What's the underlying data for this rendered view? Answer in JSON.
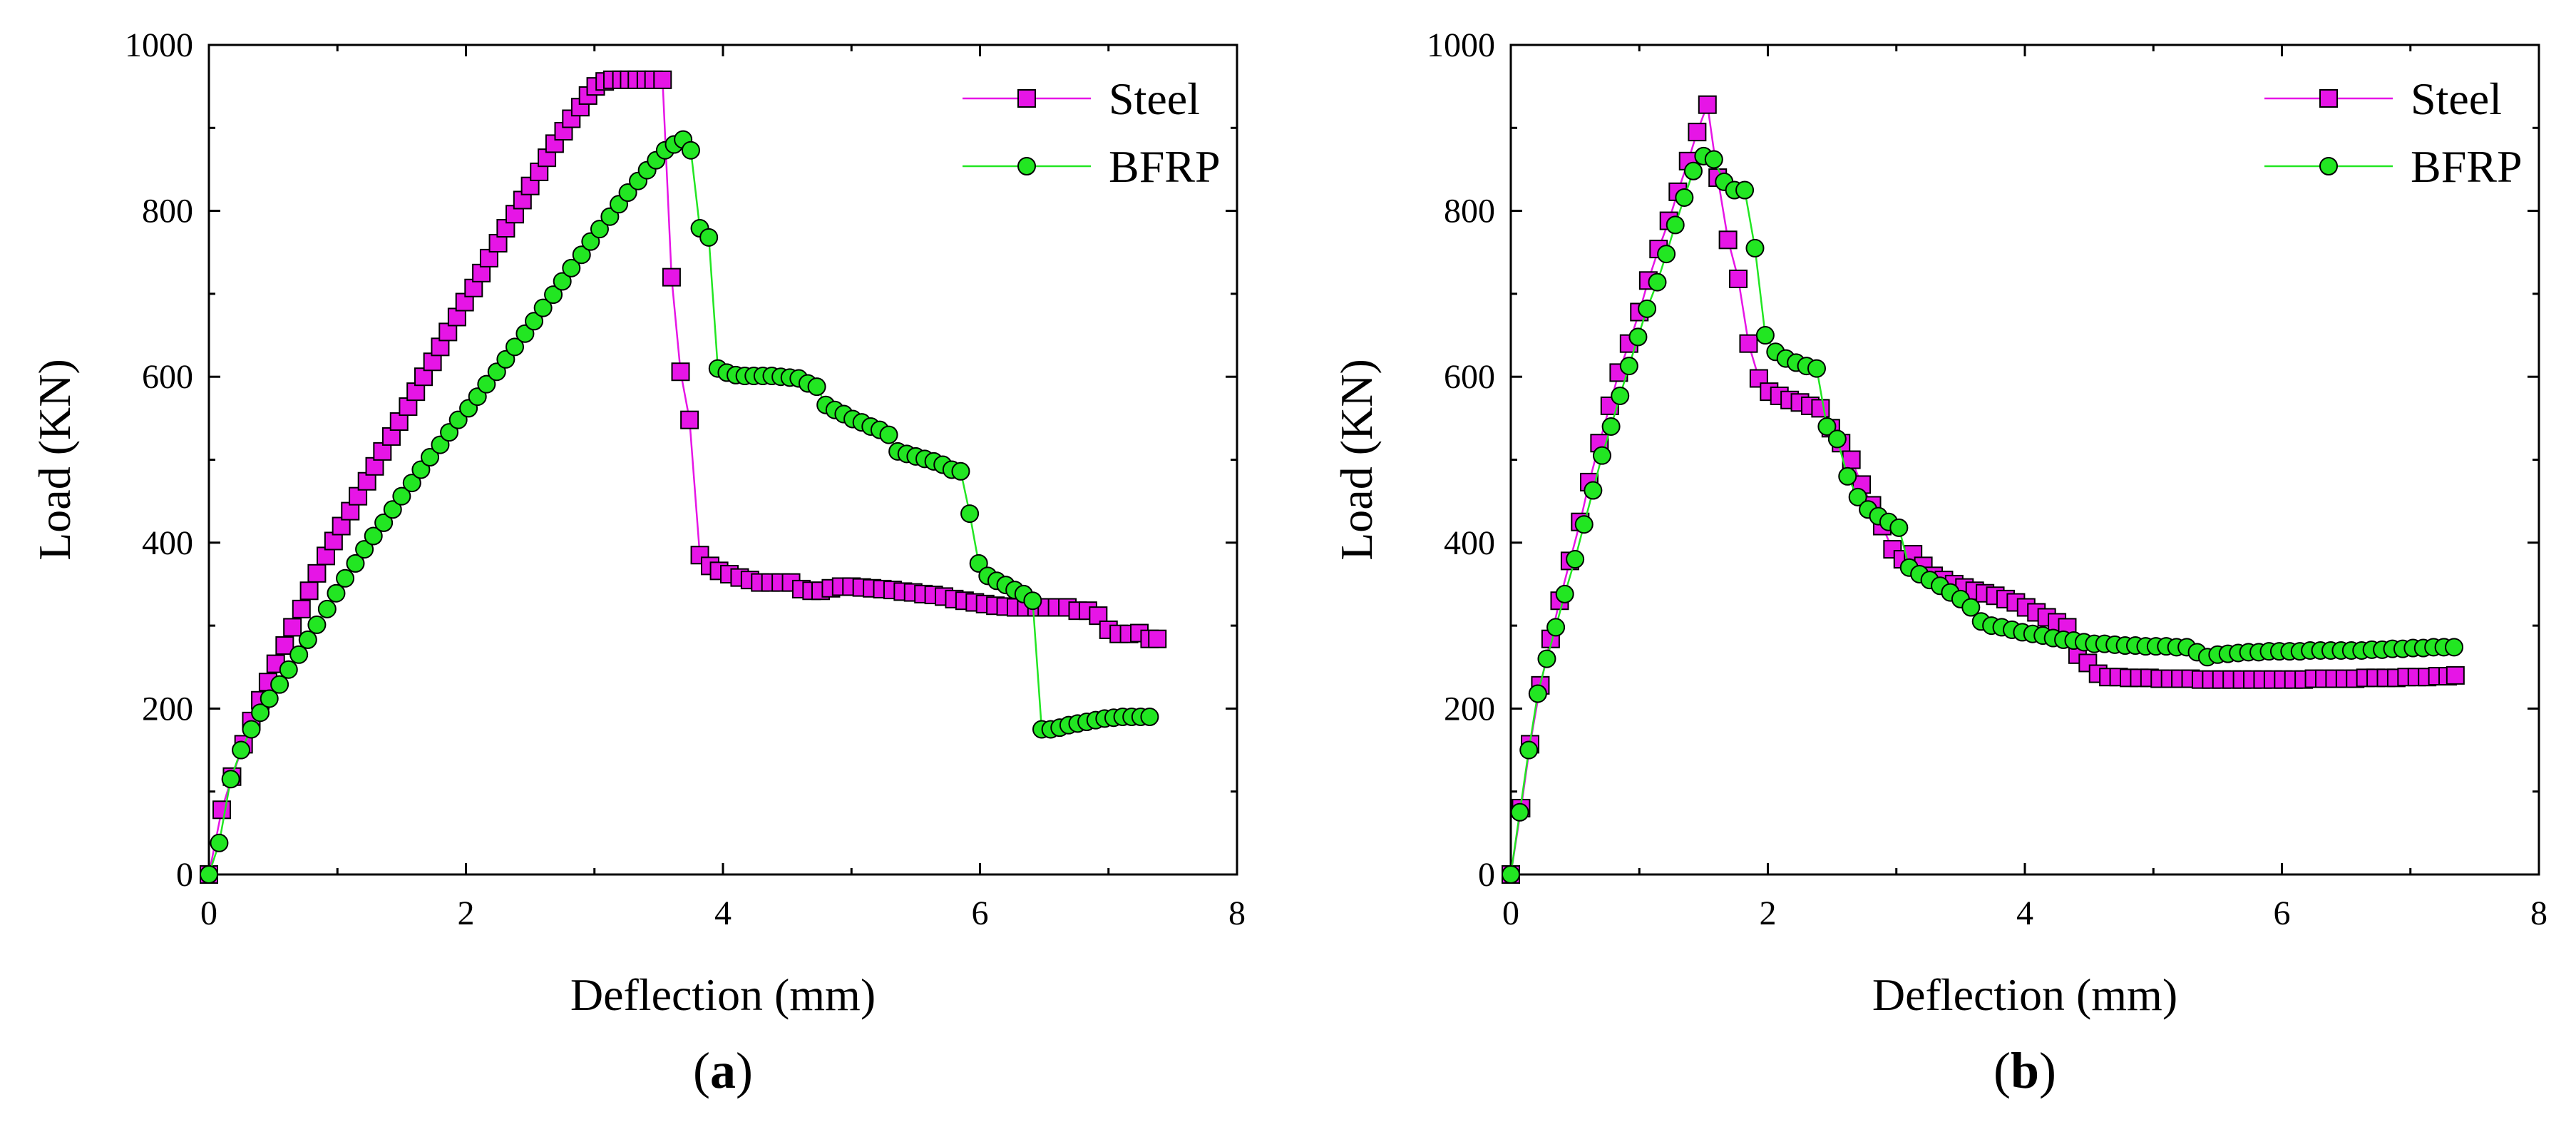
{
  "chart_data": [
    {
      "type": "line",
      "panel_label": "a",
      "xlabel": "Deflection (mm)",
      "ylabel": "Load (KN)",
      "xlim": [
        0,
        8
      ],
      "ylim": [
        0,
        1000
      ],
      "xticks": [
        0,
        2,
        4,
        6,
        8
      ],
      "yticks": [
        0,
        200,
        400,
        600,
        800,
        1000
      ],
      "grid": false,
      "legend": "top-right",
      "series": [
        {
          "name": "Steel",
          "color": "#e615e6",
          "marker": "square",
          "x": [
            0,
            0.1,
            0.18,
            0.27,
            0.33,
            0.4,
            0.46,
            0.52,
            0.59,
            0.65,
            0.72,
            0.78,
            0.84,
            0.91,
            0.97,
            1.03,
            1.1,
            1.16,
            1.23,
            1.29,
            1.35,
            1.42,
            1.48,
            1.55,
            1.61,
            1.67,
            1.74,
            1.8,
            1.86,
            1.93,
            1.99,
            2.06,
            2.12,
            2.18,
            2.25,
            2.31,
            2.38,
            2.44,
            2.5,
            2.57,
            2.63,
            2.69,
            2.76,
            2.82,
            2.89,
            2.95,
            3.01,
            3.08,
            3.14,
            3.21,
            3.27,
            3.33,
            3.4,
            3.46,
            3.53,
            3.6,
            3.67,
            3.74,
            3.82,
            3.9,
            3.97,
            4.05,
            4.13,
            4.21,
            4.29,
            4.37,
            4.45,
            4.53,
            4.61,
            4.69,
            4.76,
            4.84,
            4.92,
            5.0,
            5.08,
            5.16,
            5.24,
            5.32,
            5.4,
            5.48,
            5.56,
            5.64,
            5.72,
            5.8,
            5.88,
            5.96,
            6.04,
            6.12,
            6.2,
            6.28,
            6.36,
            6.44,
            6.52,
            6.6,
            6.68,
            6.76,
            6.84,
            6.92,
            7.0,
            7.08,
            7.16,
            7.24,
            7.32,
            7.38
          ],
          "y": [
            0,
            78,
            118,
            157,
            185,
            210,
            232,
            254,
            276,
            298,
            320,
            342,
            363,
            384,
            402,
            420,
            438,
            456,
            474,
            492,
            510,
            528,
            546,
            564,
            582,
            600,
            618,
            636,
            654,
            672,
            690,
            707,
            725,
            743,
            761,
            779,
            796,
            813,
            830,
            847,
            864,
            881,
            896,
            911,
            925,
            939,
            950,
            956,
            958,
            958,
            958,
            958,
            958,
            958,
            958,
            720,
            606,
            548,
            385,
            372,
            366,
            362,
            358,
            355,
            352,
            352,
            352,
            352,
            344,
            342,
            342,
            345,
            347,
            347,
            346,
            345,
            344,
            343,
            341,
            340,
            338,
            337,
            335,
            332,
            330,
            328,
            326,
            324,
            323,
            322,
            322,
            322,
            322,
            322,
            322,
            318,
            318,
            312,
            295,
            290,
            290,
            291,
            284,
            284
          ]
        },
        {
          "name": "BFRP",
          "color": "#22e622",
          "marker": "circle",
          "x": [
            0,
            0.08,
            0.17,
            0.25,
            0.33,
            0.4,
            0.47,
            0.55,
            0.62,
            0.7,
            0.77,
            0.84,
            0.92,
            0.99,
            1.06,
            1.14,
            1.21,
            1.28,
            1.36,
            1.43,
            1.5,
            1.58,
            1.65,
            1.72,
            1.8,
            1.87,
            1.94,
            2.02,
            2.09,
            2.16,
            2.24,
            2.31,
            2.38,
            2.46,
            2.53,
            2.6,
            2.68,
            2.75,
            2.82,
            2.9,
            2.97,
            3.04,
            3.12,
            3.19,
            3.26,
            3.34,
            3.41,
            3.48,
            3.55,
            3.62,
            3.69,
            3.75,
            3.82,
            3.89,
            3.96,
            4.03,
            4.1,
            4.17,
            4.24,
            4.31,
            4.38,
            4.45,
            4.52,
            4.59,
            4.66,
            4.73,
            4.8,
            4.87,
            4.94,
            5.01,
            5.08,
            5.15,
            5.22,
            5.29,
            5.36,
            5.43,
            5.5,
            5.57,
            5.64,
            5.71,
            5.78,
            5.85,
            5.92,
            5.99,
            6.06,
            6.13,
            6.2,
            6.27,
            6.34,
            6.41,
            6.48,
            6.55,
            6.62,
            6.69,
            6.76,
            6.83,
            6.9,
            6.97,
            7.04,
            7.11,
            7.18,
            7.25,
            7.32
          ],
          "y": [
            0,
            38,
            115,
            150,
            175,
            195,
            212,
            229,
            247,
            265,
            283,
            301,
            320,
            339,
            357,
            375,
            392,
            408,
            424,
            440,
            456,
            472,
            488,
            503,
            518,
            533,
            548,
            562,
            576,
            591,
            606,
            621,
            636,
            652,
            667,
            683,
            699,
            715,
            731,
            747,
            763,
            778,
            793,
            808,
            822,
            836,
            849,
            861,
            873,
            880,
            886,
            873,
            779,
            768,
            610,
            605,
            602,
            601,
            601,
            601,
            601,
            600,
            599,
            598,
            592,
            588,
            566,
            560,
            555,
            549,
            545,
            540,
            536,
            530,
            510,
            507,
            504,
            501,
            498,
            494,
            488,
            486,
            435,
            375,
            360,
            354,
            349,
            343,
            338,
            330,
            175,
            175,
            177,
            180,
            182,
            184,
            186,
            188,
            189,
            190,
            190,
            190,
            190
          ]
        }
      ],
      "caption_open": "(",
      "caption_letter": "a",
      "caption_close": ")"
    },
    {
      "type": "line",
      "panel_label": "b",
      "xlabel": "Deflection (mm)",
      "ylabel": "Load (KN)",
      "xlim": [
        0,
        8
      ],
      "ylim": [
        0,
        1000
      ],
      "xticks": [
        0,
        2,
        4,
        6,
        8
      ],
      "yticks": [
        0,
        200,
        400,
        600,
        800,
        1000
      ],
      "grid": false,
      "legend": "top-right",
      "series": [
        {
          "name": "Steel",
          "color": "#e615e6",
          "marker": "square",
          "x": [
            0,
            0.08,
            0.15,
            0.23,
            0.31,
            0.38,
            0.46,
            0.54,
            0.61,
            0.69,
            0.77,
            0.84,
            0.92,
            1.0,
            1.07,
            1.15,
            1.23,
            1.3,
            1.38,
            1.45,
            1.53,
            1.61,
            1.69,
            1.77,
            1.85,
            1.93,
            2.01,
            2.09,
            2.17,
            2.25,
            2.33,
            2.41,
            2.49,
            2.57,
            2.65,
            2.73,
            2.81,
            2.89,
            2.97,
            3.05,
            3.13,
            3.21,
            3.29,
            3.37,
            3.45,
            3.53,
            3.61,
            3.69,
            3.77,
            3.85,
            3.93,
            4.01,
            4.09,
            4.17,
            4.25,
            4.33,
            4.41,
            4.49,
            4.57,
            4.65,
            4.73,
            4.81,
            4.89,
            4.97,
            5.05,
            5.13,
            5.21,
            5.29,
            5.37,
            5.45,
            5.53,
            5.61,
            5.69,
            5.77,
            5.85,
            5.93,
            6.01,
            6.09,
            6.17,
            6.25,
            6.33,
            6.41,
            6.49,
            6.57,
            6.65,
            6.73,
            6.81,
            6.89,
            6.97,
            7.05,
            7.13,
            7.21,
            7.29,
            7.35
          ],
          "y": [
            0,
            80,
            157,
            228,
            284,
            330,
            378,
            425,
            473,
            520,
            565,
            605,
            640,
            678,
            716,
            754,
            788,
            823,
            860,
            895,
            928,
            840,
            765,
            718,
            640,
            598,
            582,
            577,
            572,
            569,
            565,
            562,
            538,
            520,
            500,
            470,
            445,
            420,
            392,
            380,
            386,
            372,
            360,
            355,
            350,
            346,
            342,
            339,
            336,
            332,
            328,
            322,
            316,
            310,
            304,
            298,
            265,
            255,
            242,
            238,
            238,
            237,
            237,
            237,
            236,
            236,
            236,
            236,
            235,
            235,
            235,
            235,
            235,
            235,
            235,
            235,
            235,
            235,
            235,
            236,
            236,
            236,
            236,
            236,
            237,
            237,
            237,
            237,
            238,
            238,
            238,
            239,
            239,
            240
          ]
        },
        {
          "name": "BFRP",
          "color": "#22e622",
          "marker": "circle",
          "x": [
            0,
            0.07,
            0.14,
            0.21,
            0.28,
            0.35,
            0.42,
            0.5,
            0.57,
            0.64,
            0.71,
            0.78,
            0.85,
            0.92,
            0.99,
            1.06,
            1.14,
            1.21,
            1.28,
            1.35,
            1.42,
            1.5,
            1.58,
            1.66,
            1.74,
            1.82,
            1.9,
            1.98,
            2.06,
            2.14,
            2.22,
            2.3,
            2.38,
            2.46,
            2.54,
            2.62,
            2.7,
            2.78,
            2.86,
            2.94,
            3.02,
            3.1,
            3.18,
            3.26,
            3.34,
            3.42,
            3.5,
            3.58,
            3.66,
            3.74,
            3.82,
            3.9,
            3.98,
            4.06,
            4.14,
            4.22,
            4.3,
            4.38,
            4.46,
            4.54,
            4.62,
            4.7,
            4.78,
            4.86,
            4.94,
            5.02,
            5.1,
            5.18,
            5.26,
            5.34,
            5.42,
            5.5,
            5.58,
            5.66,
            5.74,
            5.82,
            5.9,
            5.98,
            6.06,
            6.14,
            6.22,
            6.3,
            6.38,
            6.46,
            6.54,
            6.62,
            6.7,
            6.78,
            6.86,
            6.94,
            7.02,
            7.1,
            7.18,
            7.26,
            7.34
          ],
          "y": [
            0,
            75,
            150,
            218,
            260,
            298,
            338,
            380,
            422,
            463,
            505,
            540,
            577,
            613,
            648,
            682,
            714,
            748,
            783,
            816,
            848,
            866,
            862,
            835,
            825,
            825,
            755,
            650,
            630,
            622,
            617,
            613,
            610,
            540,
            525,
            480,
            455,
            440,
            432,
            425,
            418,
            370,
            362,
            355,
            348,
            340,
            332,
            322,
            305,
            300,
            298,
            295,
            292,
            290,
            288,
            285,
            283,
            282,
            280,
            278,
            278,
            277,
            276,
            276,
            275,
            275,
            275,
            274,
            274,
            268,
            262,
            265,
            266,
            267,
            268,
            268,
            269,
            269,
            269,
            269,
            270,
            270,
            270,
            270,
            270,
            270,
            271,
            271,
            272,
            272,
            273,
            273,
            274,
            274,
            274
          ]
        }
      ],
      "caption_open": "(",
      "caption_letter": "b",
      "caption_close": ")"
    }
  ]
}
